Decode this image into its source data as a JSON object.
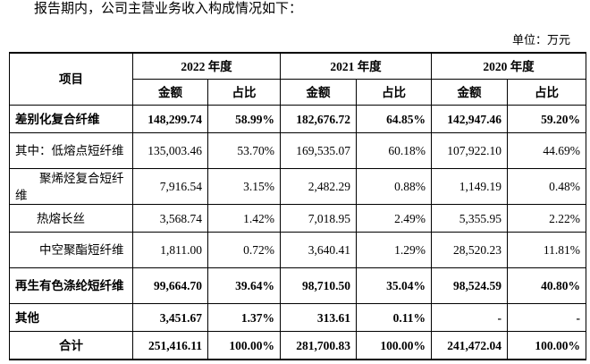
{
  "intro": "报告期内，公司主营业务收入构成情况如下：",
  "unit": "单位：万元",
  "table": {
    "header": {
      "item": "项目",
      "years": [
        "2022 年度",
        "2021 年度",
        "2020 年度"
      ],
      "sub": [
        "金额",
        "占比"
      ]
    },
    "rows": [
      {
        "label": "差别化复合纤维",
        "bold": true,
        "values": [
          "148,299.74",
          "58.99%",
          "182,676.72",
          "64.85%",
          "142,947.46",
          "59.20%"
        ]
      },
      {
        "label": "其中：低熔点短纤维",
        "bold": false,
        "values": [
          "135,003.46",
          "53.70%",
          "169,535.07",
          "60.18%",
          "107,922.10",
          "44.69%"
        ]
      },
      {
        "label": "聚烯烃复合短纤维",
        "bold": false,
        "values": [
          "7,916.54",
          "3.15%",
          "2,482.29",
          "0.88%",
          "1,149.19",
          "0.48%"
        ]
      },
      {
        "label": "热熔长丝",
        "bold": false,
        "values": [
          "3,568.74",
          "1.42%",
          "7,018.95",
          "2.49%",
          "5,355.95",
          "2.22%"
        ]
      },
      {
        "label": "中空聚酯短纤维",
        "bold": false,
        "values": [
          "1,811.00",
          "0.72%",
          "3,640.41",
          "1.29%",
          "28,520.23",
          "11.81%"
        ]
      },
      {
        "label": "再生有色涤纶短纤维",
        "bold": true,
        "values": [
          "99,664.70",
          "39.64%",
          "98,710.50",
          "35.04%",
          "98,524.59",
          "40.80%"
        ]
      },
      {
        "label": "其他",
        "bold": true,
        "values": [
          "3,451.67",
          "1.37%",
          "313.61",
          "0.11%",
          "-",
          "-"
        ]
      },
      {
        "label": "合计",
        "bold": true,
        "values": [
          "251,416.11",
          "100.00%",
          "281,700.83",
          "100.00%",
          "241,472.04",
          "100.00%"
        ]
      }
    ]
  }
}
